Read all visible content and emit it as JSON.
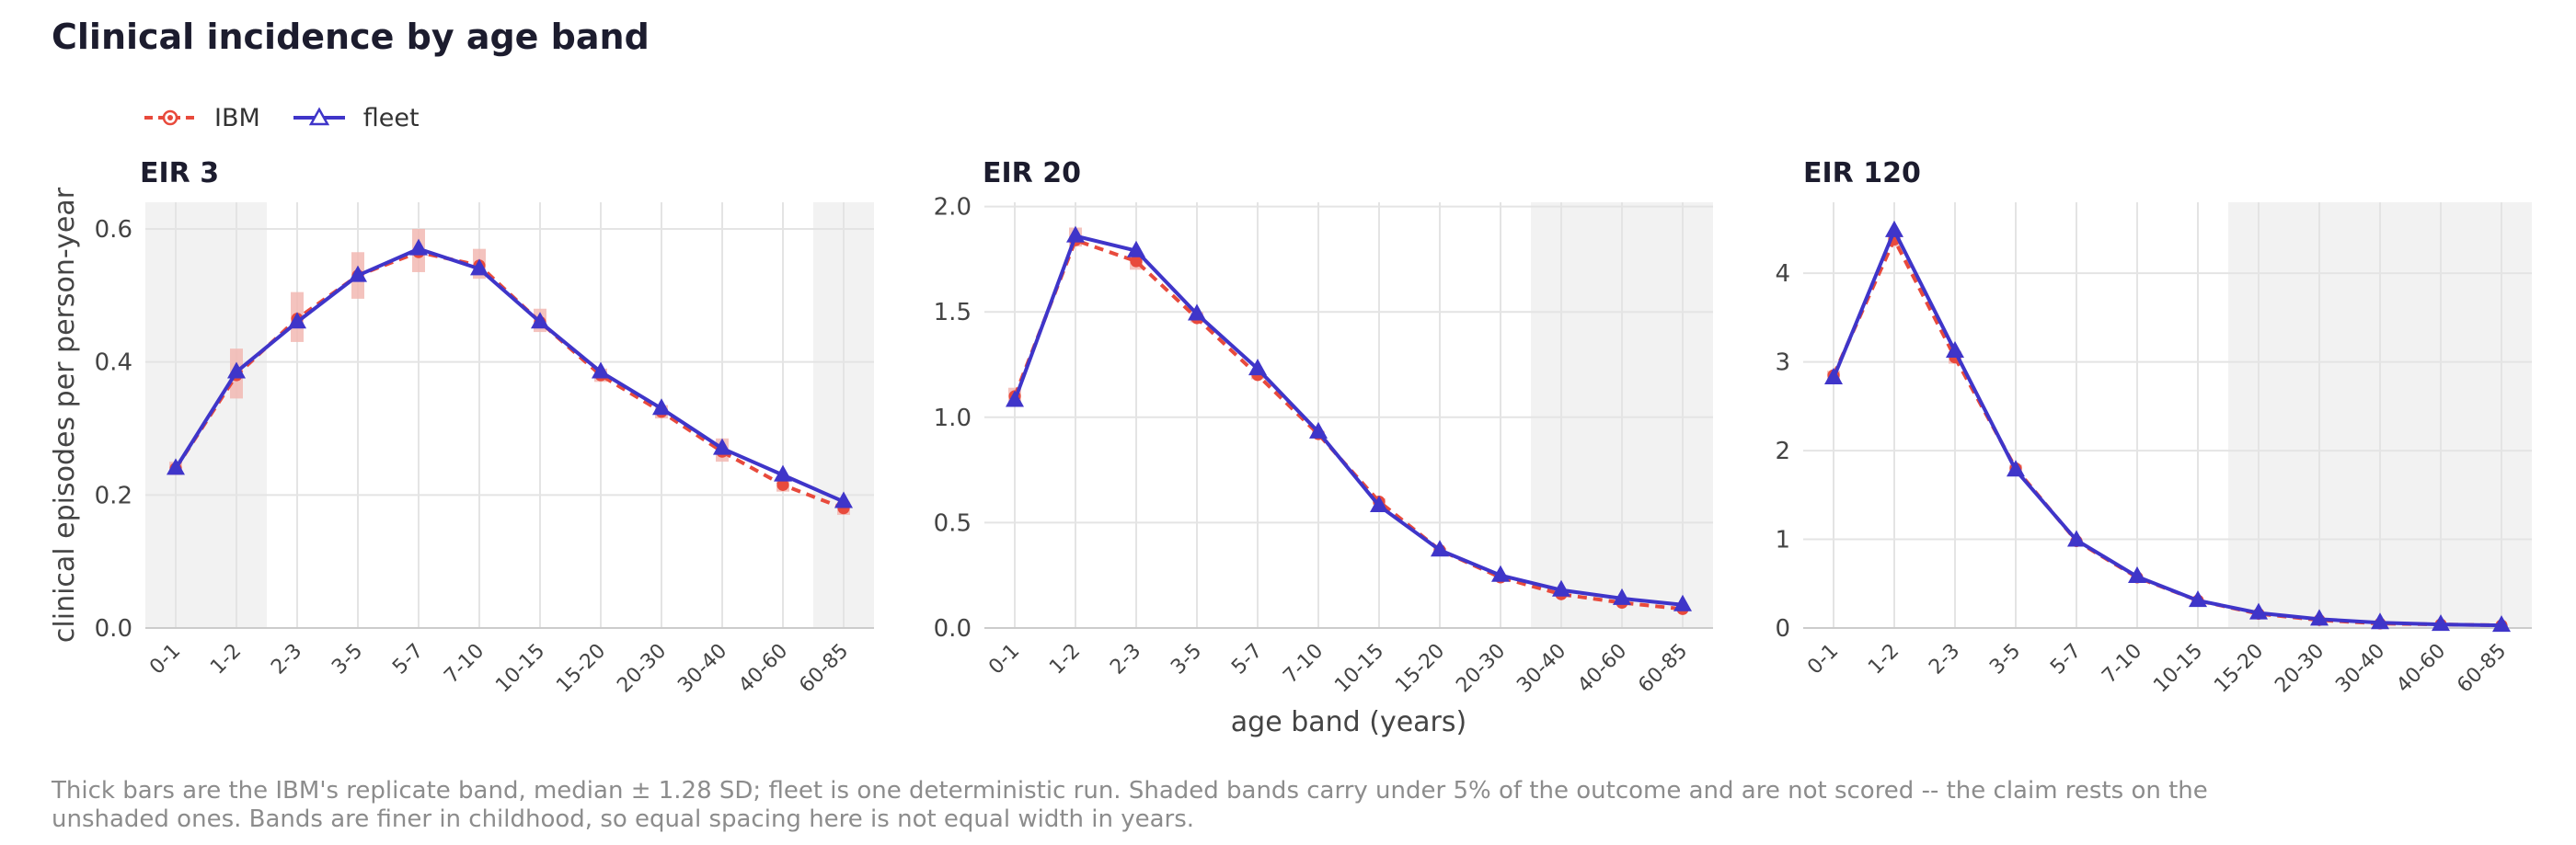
{
  "title": "Clinical incidence by age band",
  "legend": {
    "ibm": "IBM",
    "fleet": "fleet"
  },
  "colors": {
    "ibm": "#e84a3c",
    "ibm_band": "#f2b8b3",
    "fleet": "#3f35c9",
    "shade": "#f2f2f2",
    "grid": "#e4e4e4"
  },
  "caption": "Thick bars are the IBM's replicate band, median ± 1.28 SD; fleet is one deterministic run. Shaded bands carry under 5% of the outcome and are not scored -- the claim rests on the unshaded ones. Bands are finer in childhood, so equal spacing here is not equal width in years.",
  "chart_data": [
    {
      "type": "line",
      "title": "EIR 3",
      "ylabel": "clinical episodes per person-year",
      "xlabel": "",
      "categories": [
        "0-1",
        "1-2",
        "2-3",
        "3-5",
        "5-7",
        "7-10",
        "10-15",
        "15-20",
        "20-30",
        "30-40",
        "40-60",
        "60-85"
      ],
      "ylim": [
        0,
        0.64
      ],
      "yticks": [
        0.0,
        0.2,
        0.4,
        0.6
      ],
      "ytick_labels": [
        "0.0",
        "0.2",
        "0.4",
        "0.6"
      ],
      "shaded_bands": [
        "0-1",
        "1-2",
        "60-85"
      ],
      "series": [
        {
          "name": "IBM",
          "values": [
            0.24,
            0.38,
            0.465,
            0.53,
            0.565,
            0.545,
            0.46,
            0.38,
            0.325,
            0.265,
            0.215,
            0.18
          ],
          "band_low": [
            0.23,
            0.345,
            0.43,
            0.495,
            0.535,
            0.525,
            0.445,
            0.37,
            0.315,
            0.25,
            0.205,
            0.17
          ],
          "band_high": [
            0.25,
            0.42,
            0.505,
            0.565,
            0.6,
            0.57,
            0.48,
            0.39,
            0.335,
            0.285,
            0.225,
            0.19
          ]
        },
        {
          "name": "fleet",
          "values": [
            0.24,
            0.385,
            0.46,
            0.53,
            0.57,
            0.54,
            0.46,
            0.385,
            0.33,
            0.27,
            0.23,
            0.19
          ]
        }
      ]
    },
    {
      "type": "line",
      "title": "EIR 20",
      "ylabel": "",
      "xlabel": "age band (years)",
      "categories": [
        "0-1",
        "1-2",
        "2-3",
        "3-5",
        "5-7",
        "7-10",
        "10-15",
        "15-20",
        "20-30",
        "30-40",
        "40-60",
        "60-85"
      ],
      "ylim": [
        0,
        2.02
      ],
      "yticks": [
        0.0,
        0.5,
        1.0,
        1.5,
        2.0
      ],
      "ytick_labels": [
        "0.0",
        "0.5",
        "1.0",
        "1.5",
        "2.0"
      ],
      "shaded_bands": [
        "30-40",
        "40-60",
        "60-85"
      ],
      "series": [
        {
          "name": "IBM",
          "values": [
            1.1,
            1.84,
            1.74,
            1.47,
            1.2,
            0.92,
            0.6,
            0.37,
            0.24,
            0.16,
            0.12,
            0.09
          ],
          "band_low": [
            1.06,
            1.81,
            1.7,
            1.45,
            1.18,
            0.91,
            0.585,
            0.36,
            0.235,
            0.155,
            0.115,
            0.085
          ],
          "band_high": [
            1.14,
            1.9,
            1.78,
            1.5,
            1.22,
            0.935,
            0.615,
            0.38,
            0.245,
            0.165,
            0.125,
            0.095
          ]
        },
        {
          "name": "fleet",
          "values": [
            1.08,
            1.86,
            1.79,
            1.49,
            1.23,
            0.93,
            0.58,
            0.37,
            0.25,
            0.18,
            0.14,
            0.11
          ]
        }
      ]
    },
    {
      "type": "line",
      "title": "EIR 120",
      "ylabel": "",
      "xlabel": "",
      "categories": [
        "0-1",
        "1-2",
        "2-3",
        "3-5",
        "5-7",
        "7-10",
        "10-15",
        "15-20",
        "20-30",
        "30-40",
        "40-60",
        "60-85"
      ],
      "ylim": [
        0,
        4.8
      ],
      "yticks": [
        0,
        1,
        2,
        3,
        4
      ],
      "ytick_labels": [
        "0",
        "1",
        "2",
        "3",
        "4"
      ],
      "shaded_bands": [
        "15-20",
        "20-30",
        "30-40",
        "40-60",
        "60-85"
      ],
      "series": [
        {
          "name": "IBM",
          "values": [
            2.85,
            4.38,
            3.05,
            1.8,
            0.98,
            0.57,
            0.31,
            0.16,
            0.09,
            0.05,
            0.04,
            0.03
          ],
          "band_low": [
            2.8,
            4.3,
            2.98,
            1.76,
            0.96,
            0.56,
            0.3,
            0.155,
            0.085,
            0.045,
            0.035,
            0.025
          ],
          "band_high": [
            2.9,
            4.46,
            3.12,
            1.84,
            1.0,
            0.58,
            0.32,
            0.165,
            0.095,
            0.055,
            0.045,
            0.035
          ]
        },
        {
          "name": "fleet",
          "values": [
            2.82,
            4.48,
            3.12,
            1.78,
            0.99,
            0.58,
            0.31,
            0.17,
            0.1,
            0.06,
            0.04,
            0.03
          ]
        }
      ]
    }
  ]
}
